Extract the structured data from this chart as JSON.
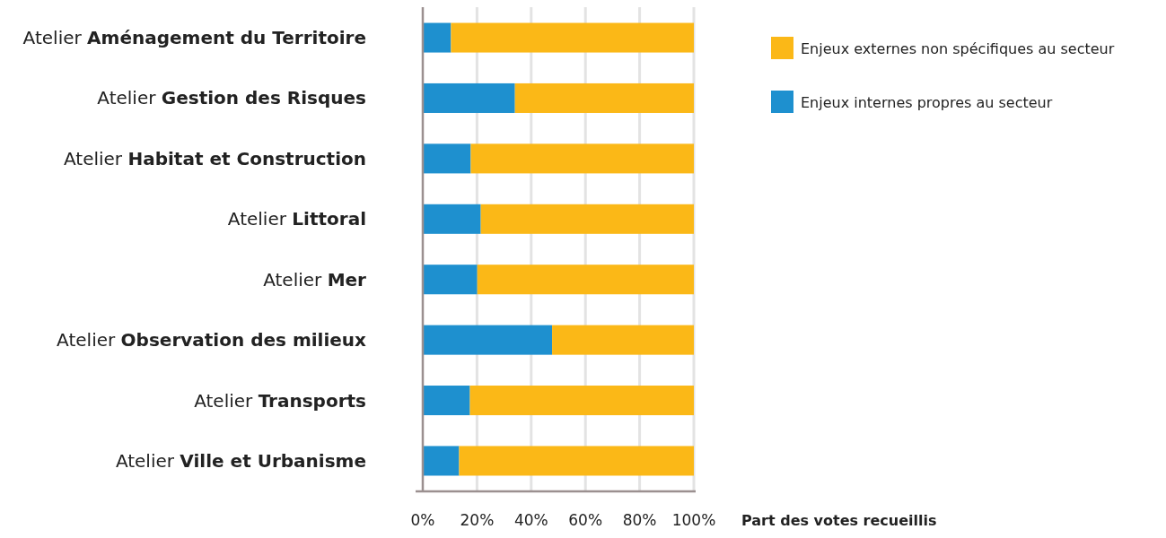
{
  "chart_data": {
    "type": "bar",
    "orientation": "horizontal",
    "stacked": true,
    "xlabel": "Part des votes recueillis",
    "categories": [
      "Atelier Aménagement du Territoire",
      "Atelier Gestion des Risques",
      "Atelier Habitat et Construction",
      "Atelier Littoral",
      "Atelier Mer",
      "Atelier Observation des milieux",
      "Atelier Transports",
      "Atelier Ville et Urbanisme"
    ],
    "series": [
      {
        "name": "Enjeux internes propres au secteur",
        "color": "#1e90cf",
        "values": [
          10.4,
          34.0,
          17.7,
          21.4,
          20.1,
          47.7,
          17.4,
          13.4
        ]
      },
      {
        "name": "Enjeux externes non spécifiques au secteur",
        "color": "#fbb817",
        "values": [
          89.6,
          66.0,
          82.3,
          78.6,
          79.9,
          52.3,
          82.6,
          86.6
        ]
      }
    ],
    "xlim": [
      0,
      100
    ],
    "xticks": [
      {
        "value": 0,
        "label": "0%"
      },
      {
        "value": 20,
        "label": "20%"
      },
      {
        "value": 40,
        "label": "40%"
      },
      {
        "value": 60,
        "label": "60%"
      },
      {
        "value": 80,
        "label": "80%"
      },
      {
        "value": 100,
        "label": "100%"
      }
    ],
    "grid": "x",
    "legend": "top right"
  }
}
